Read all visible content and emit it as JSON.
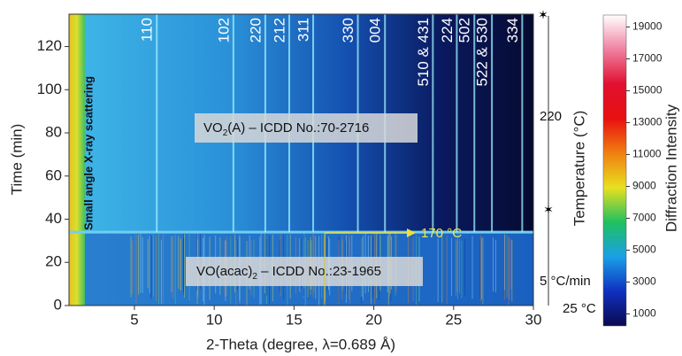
{
  "chart_data": {
    "type": "heatmap",
    "x_label": "2-Theta (degree, λ=0.689 Å)",
    "y_label": "Time (min)",
    "xlim": [
      0.9,
      30
    ],
    "xticks": [
      5,
      10,
      15,
      20,
      25,
      30
    ],
    "ylim": [
      0,
      135
    ],
    "yticks": [
      0,
      20,
      40,
      60,
      80,
      100,
      120
    ],
    "phase_change_time": 34,
    "peaks": [
      {
        "label": "110",
        "x": 6.4
      },
      {
        "label": "102",
        "x": 11.2
      },
      {
        "label": "220",
        "x": 13.2
      },
      {
        "label": "212",
        "x": 14.7
      },
      {
        "label": "311",
        "x": 16.2
      },
      {
        "label": "330",
        "x": 19.0
      },
      {
        "label": "004",
        "x": 20.7
      },
      {
        "label": "510 & 431",
        "x": 23.7
      },
      {
        "label": "224",
        "x": 25.2
      },
      {
        "label": "502",
        "x": 26.3
      },
      {
        "label": "522 & 530",
        "x": 27.4
      },
      {
        "label": "334",
        "x": 29.3
      }
    ],
    "small_angle_label": "Small angle X-ray scattering",
    "phase_labels": [
      {
        "text": "VO",
        "sub": "2",
        "rest": "(A) – ICDD No.:70-2716"
      },
      {
        "text": "VO(acac)",
        "sub": "2",
        "rest": " – ICDD No.:23-1965"
      }
    ],
    "temperature_label": "Temperature (°C)",
    "temperature_annotations": [
      "220",
      "170 °C",
      "5 °C/min",
      "25 °C"
    ],
    "colorbar": {
      "label": "Diffraction Intensity",
      "lim": [
        250,
        19750
      ],
      "ticks": [
        1000,
        3000,
        5000,
        7000,
        9000,
        11000,
        13000,
        15000,
        17000,
        19000
      ],
      "colors": [
        "#0a0a50",
        "#1030c0",
        "#1aa0e8",
        "#20c060",
        "#e8e020",
        "#f08010",
        "#e81010",
        "#e01030",
        "#f080a0",
        "#ffffff"
      ]
    }
  }
}
